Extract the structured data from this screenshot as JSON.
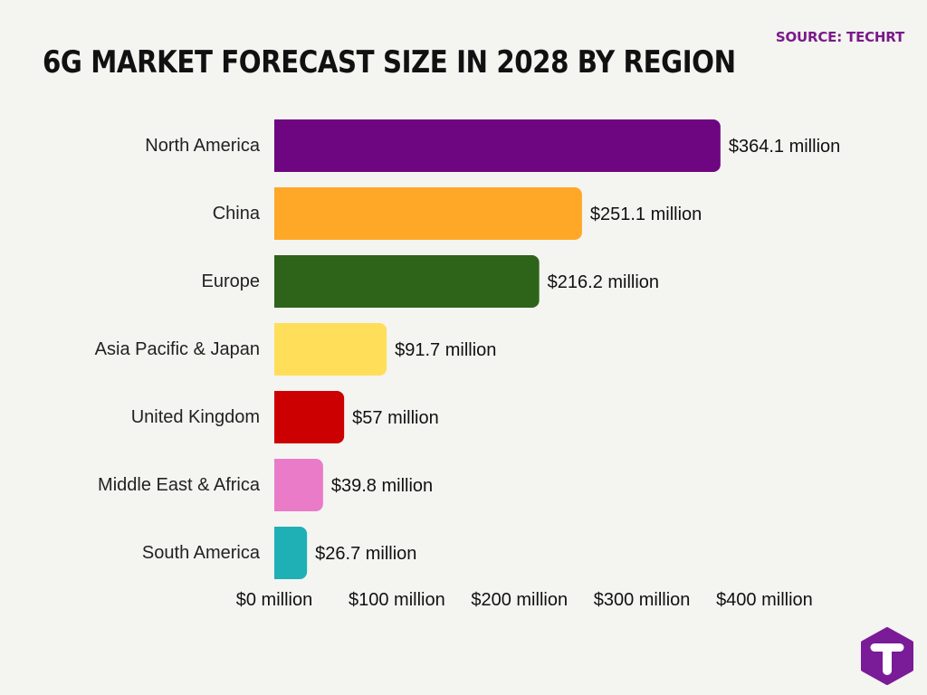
{
  "source": "SOURCE: TECHRT",
  "title": "6G MARKET FORECAST SIZE IN 2028 BY REGION",
  "chart_data": {
    "type": "bar",
    "orientation": "horizontal",
    "title": "6G MARKET FORECAST SIZE IN 2028 BY REGION",
    "xlabel": "",
    "ylabel": "",
    "unit": "million",
    "xlim": [
      0,
      400
    ],
    "x_ticks": [
      0,
      100,
      200,
      300,
      400
    ],
    "x_tick_labels": [
      "$0 million",
      "$100 million",
      "$200 million",
      "$300 million",
      "$400 million"
    ],
    "grid": false,
    "categories": [
      "North America",
      "China",
      "Europe",
      "Asia Pacific & Japan",
      "United Kingdom",
      "Middle East & Africa",
      "South America"
    ],
    "values": [
      364.1,
      251.1,
      216.2,
      91.7,
      57,
      39.8,
      26.7
    ],
    "value_labels": [
      "$364.1 million",
      "$251.1 million",
      "$216.2 million",
      "$91.7 million",
      "$57 million",
      "$39.8 million",
      "$26.7 million"
    ],
    "colors": [
      "#6d0680",
      "#ffa726",
      "#2e6419",
      "#ffde59",
      "#cc0000",
      "#ea7bc8",
      "#1eb0b5"
    ]
  },
  "logo": {
    "icon": "techrt-logo-icon",
    "color": "#7a1b97",
    "letter": "T"
  }
}
